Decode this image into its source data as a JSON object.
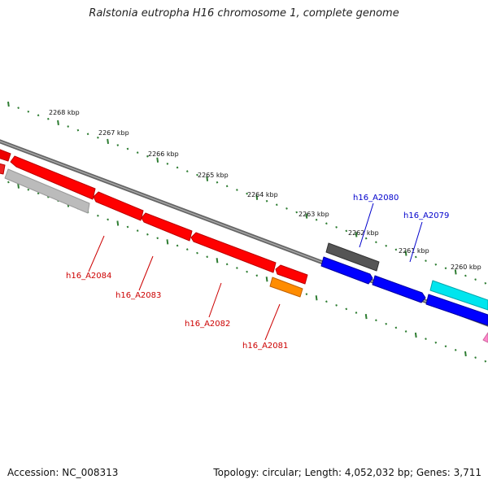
{
  "title": "Ralstonia eutropha H16 chromosome 1, complete genome",
  "footer": {
    "accession": "Accession: NC_008313",
    "summary": "Topology: circular; Length: 4,052,032 bp; Genes: 3,711"
  },
  "ticks": [
    "2268 kbp",
    "2267 kbp",
    "2266 kbp",
    "2265 kbp",
    "2264 kbp",
    "2263 kbp",
    "2262 kbp",
    "2261 kbp",
    "2260 kbp"
  ],
  "genes": {
    "forward": [
      {
        "label": "h16_A2080",
        "color": "#0000cc"
      },
      {
        "label": "h16_A2079",
        "color": "#0000cc"
      }
    ],
    "reverse": [
      {
        "label": "h16_A2084",
        "color": "#cc0000"
      },
      {
        "label": "h16_A2083",
        "color": "#cc0000"
      },
      {
        "label": "h16_A2082",
        "color": "#cc0000"
      },
      {
        "label": "h16_A2081",
        "color": "#cc0000"
      }
    ]
  },
  "colors": {
    "backbone": "#777777",
    "ticks": "#2e7d32",
    "cds_reverse": "#ff0000",
    "cds_forward": "#0000ff",
    "gray_feature": "#bbbbbb",
    "dark_feature": "#555555",
    "cyan_feature": "#00e5ee",
    "orange_feature": "#ff8c00",
    "pink_feature": "#ff88cc"
  }
}
